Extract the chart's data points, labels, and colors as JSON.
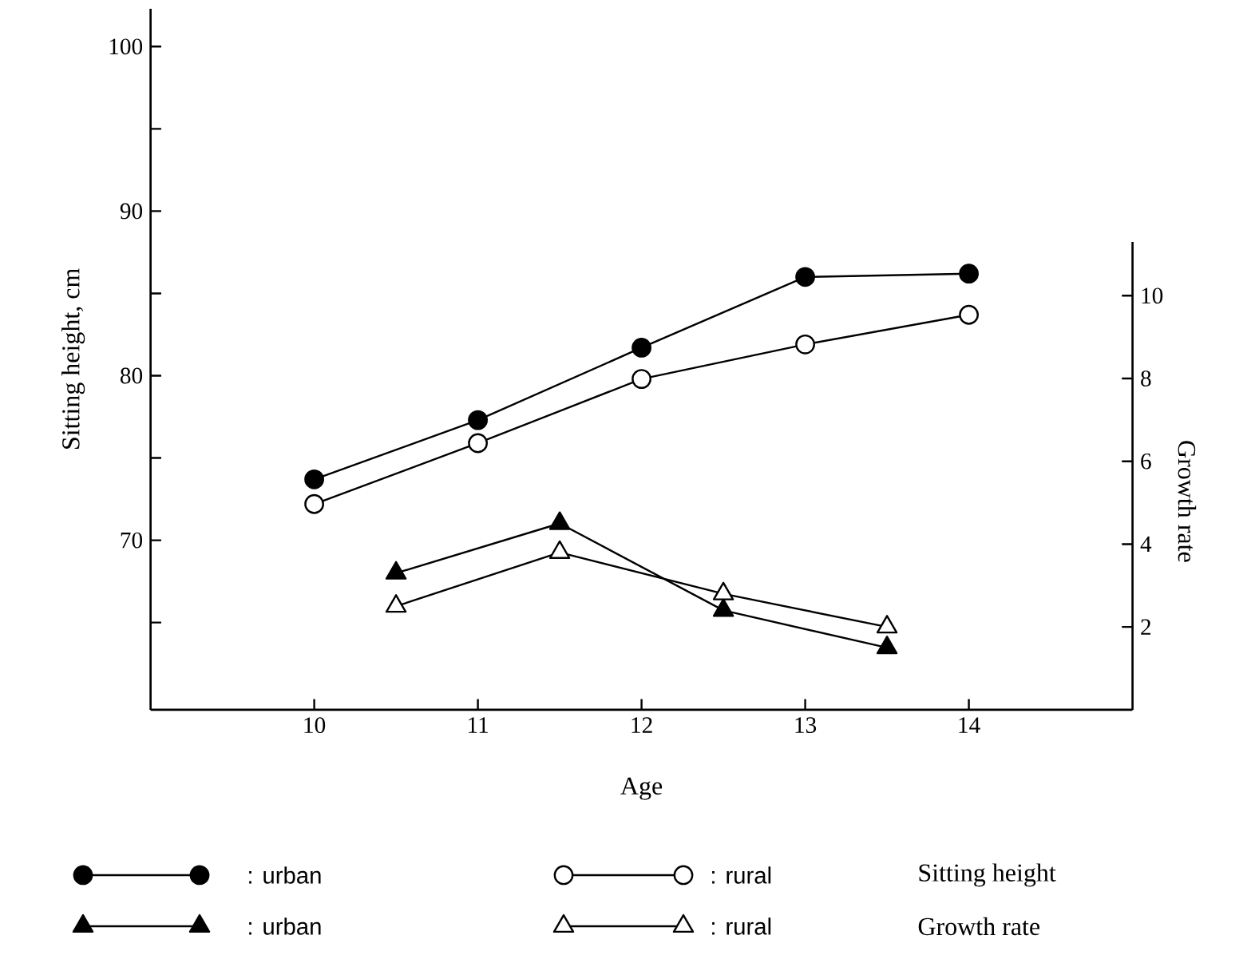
{
  "chart_data": {
    "type": "line",
    "xlabel": "Age",
    "ylabel": "Sitting height, cm",
    "y2label": "Growth rate",
    "xlim": [
      9,
      15
    ],
    "xticks": [
      10,
      11,
      12,
      13,
      14
    ],
    "ylim": [
      59.7,
      102.3
    ],
    "yticks": [
      {
        "value": 65,
        "label": null
      },
      70,
      {
        "value": 75,
        "label": null
      },
      80,
      {
        "value": 85,
        "label": null
      },
      90,
      {
        "value": 95,
        "label": null
      },
      100
    ],
    "y2lim": [
      0,
      11.3
    ],
    "y2ticks": [
      2,
      4,
      6,
      8,
      10
    ],
    "grid": false,
    "legend": "bottom",
    "line_style": "solid",
    "annotations": [
      "Sitting height",
      "Growth rate"
    ],
    "series": [
      {
        "name": ": urban",
        "color": "#000000",
        "marker": "circle",
        "x": [
          10,
          11,
          12,
          13,
          14
        ],
        "values": [
          73.7,
          77.3,
          81.7,
          86.0,
          86.2
        ]
      },
      {
        "name": ": rural",
        "color": "#ffffff",
        "marker": "circle",
        "x": [
          10,
          11,
          12,
          13,
          14
        ],
        "values": [
          72.2,
          75.9,
          79.8,
          81.9,
          83.7
        ]
      },
      {
        "name": ": urban",
        "color": "#000000",
        "marker": "triangle",
        "axis": "y2",
        "x": [
          10.5,
          11.5,
          12.5,
          13.5
        ],
        "values": [
          3.3,
          4.5,
          2.4,
          1.5
        ]
      },
      {
        "name": ": rural",
        "color": "#ffffff",
        "marker": "triangle",
        "axis": "y2",
        "x": [
          10.5,
          11.5,
          12.5,
          13.5
        ],
        "values": [
          2.5,
          3.8,
          2.8,
          2.0
        ]
      }
    ]
  }
}
